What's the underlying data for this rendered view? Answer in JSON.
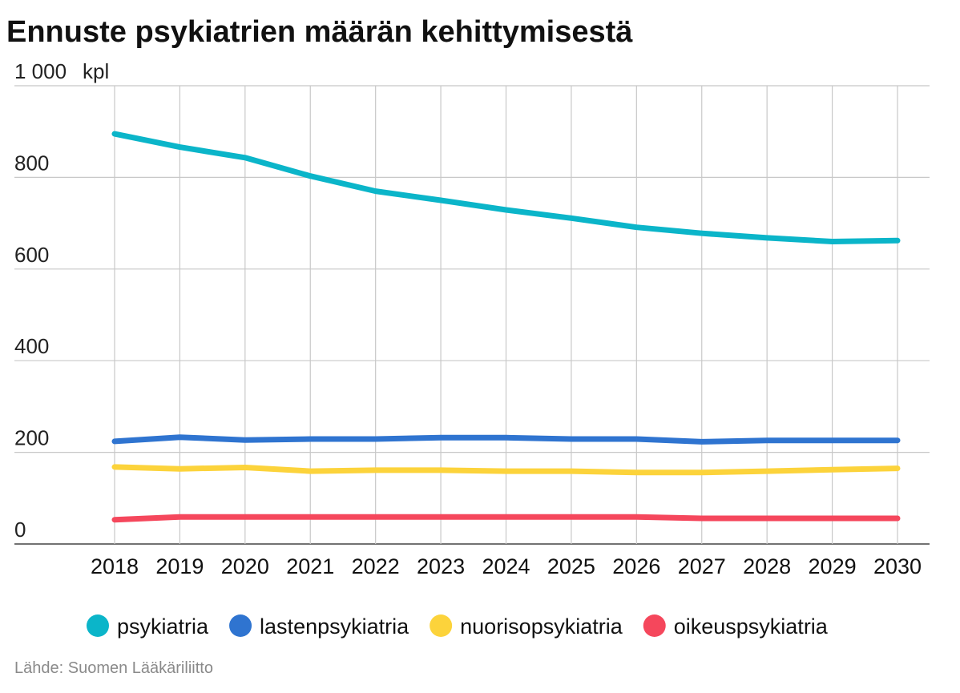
{
  "chart_data": {
    "type": "line",
    "title": "Ennuste psykiatrien määrän kehittymisestä",
    "unit_label": "kpl",
    "x": [
      "2018",
      "2019",
      "2020",
      "2021",
      "2022",
      "2023",
      "2024",
      "2025",
      "2026",
      "2027",
      "2028",
      "2029",
      "2030"
    ],
    "ylim": [
      0,
      1000
    ],
    "yticks": [
      0,
      200,
      400,
      600,
      800,
      1000
    ],
    "ytick_labels": [
      "0",
      "200",
      "400",
      "600",
      "800",
      "1 000"
    ],
    "grid": true,
    "legend_position": "bottom",
    "series": [
      {
        "name": "psykiatria",
        "color": "#0bb5c9",
        "values": [
          895,
          866,
          843,
          803,
          770,
          750,
          729,
          711,
          691,
          678,
          668,
          660,
          662
        ]
      },
      {
        "name": "lastenpsykiatria",
        "color": "#2f74d0",
        "values": [
          224,
          233,
          227,
          229,
          229,
          232,
          232,
          229,
          229,
          223,
          226,
          226,
          226
        ]
      },
      {
        "name": "nuorisopsykiatria",
        "color": "#fcd33b",
        "values": [
          168,
          164,
          167,
          159,
          161,
          161,
          159,
          159,
          156,
          156,
          159,
          162,
          165
        ]
      },
      {
        "name": "oikeuspsykiatria",
        "color": "#f5475c",
        "values": [
          53,
          59,
          59,
          59,
          59,
          59,
          59,
          59,
          59,
          56,
          56,
          56,
          56
        ]
      }
    ],
    "source": "Lähde: Suomen Lääkäriliitto"
  }
}
